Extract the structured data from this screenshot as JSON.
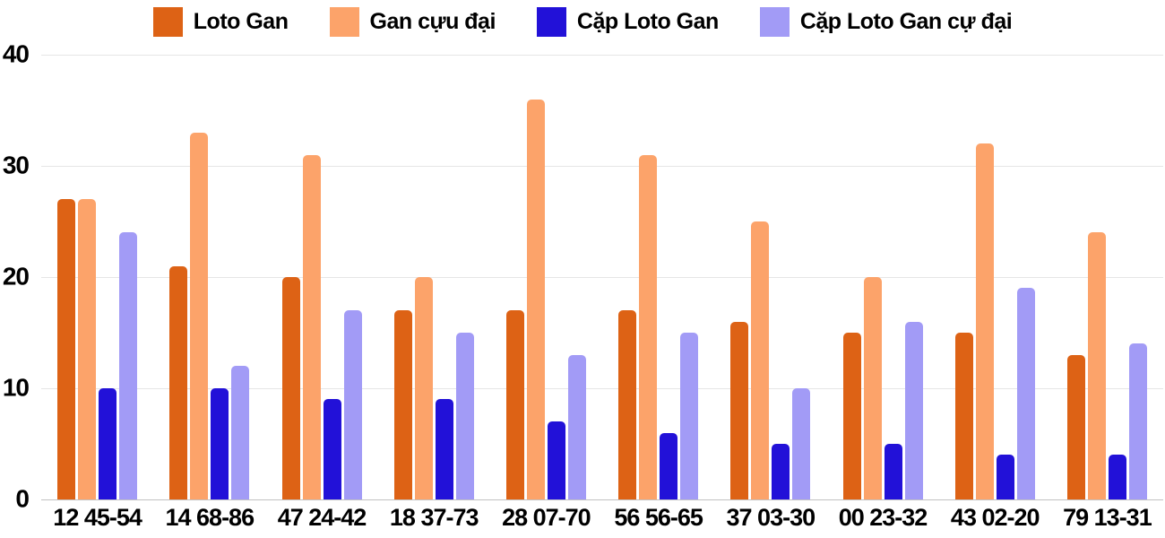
{
  "chart_data": {
    "type": "bar",
    "title": "",
    "categories": [
      "12 45-54",
      "14 68-86",
      "47 24-42",
      "18 37-73",
      "28 07-70",
      "56 56-65",
      "37 03-30",
      "00 23-32",
      "43 02-20",
      "79 13-31"
    ],
    "series": [
      {
        "name": "Loto Gan",
        "color": "#dd6215",
        "values": [
          27,
          21,
          20,
          17,
          17,
          17,
          16,
          15,
          15,
          13
        ]
      },
      {
        "name": "Gan cựu đại",
        "color": "#fca36a",
        "values": [
          27,
          33,
          31,
          20,
          36,
          31,
          25,
          20,
          32,
          24
        ]
      },
      {
        "name": "Cặp Loto Gan",
        "color": "#2211d8",
        "values": [
          10,
          10,
          9,
          9,
          7,
          6,
          5,
          5,
          4,
          4
        ]
      },
      {
        "name": "Cặp Loto Gan cự đại",
        "color": "#a29bf6",
        "values": [
          24,
          12,
          17,
          15,
          13,
          15,
          10,
          16,
          19,
          14
        ]
      }
    ],
    "xlabel": "",
    "ylabel": "",
    "ylim": [
      0,
      40
    ],
    "yticks": [
      0,
      10,
      20,
      30,
      40
    ],
    "grid": true,
    "legend_position": "top",
    "colors": {
      "gridline": "#e6e6e6",
      "baseline": "#c2c2c2",
      "text": "#000000",
      "background": "#ffffff"
    }
  }
}
